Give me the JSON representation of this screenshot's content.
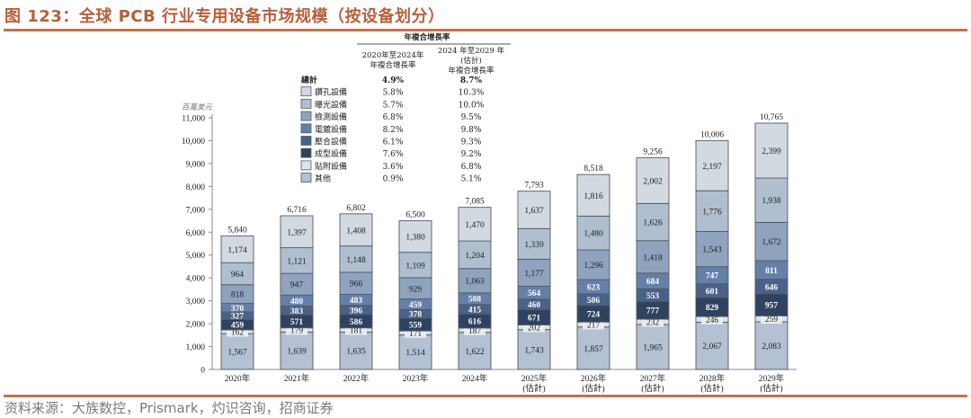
{
  "title": "图 123：全球 PCB 行业专用设备市场规模（按设备划分）",
  "source": "资料来源：大族数控，Prismark，灼识咨询，招商证券",
  "chart_data": {
    "type": "bar",
    "stacked": true,
    "title": "全球 PCB 行业专用设备市场规模（按设备划分）",
    "ylabel": "百萬美元",
    "xlabel": "",
    "ylim": [
      0,
      11000
    ],
    "yticks": [
      0,
      1000,
      2000,
      3000,
      4000,
      5000,
      6000,
      7000,
      8000,
      9000,
      10000,
      11000
    ],
    "ytick_labels": [
      "0",
      "1,000",
      "2,000",
      "3,000",
      "4,000",
      "5,000",
      "6,000",
      "7,000",
      "8,000",
      "9,000",
      "10,000",
      "11,000"
    ],
    "categories": [
      "2020年",
      "2021年",
      "2022年",
      "2023年",
      "2024年",
      "2025年",
      "2026年",
      "2027年",
      "2028年",
      "2029年"
    ],
    "category_sublabels": [
      "",
      "",
      "",
      "",
      "",
      "(估計)",
      "(估計)",
      "(估計)",
      "(估計)",
      "(估計)"
    ],
    "totals": [
      5840,
      6716,
      6802,
      6500,
      7085,
      7793,
      8518,
      9256,
      10006,
      10765
    ],
    "total_labels": [
      "5,840",
      "6,716",
      "6,802",
      "6,500",
      "7,085",
      "7,793",
      "8,518",
      "9,256",
      "10,006",
      "10,765"
    ],
    "series": [
      {
        "name": "其他",
        "color": "#b3c1d2",
        "text_color": "#222222",
        "values": [
          1567,
          1639,
          1635,
          1514,
          1622,
          1743,
          1857,
          1965,
          2067,
          2083
        ],
        "cagr_2020_2024": "0.9%",
        "cagr_2024_2029": "5.1%"
      },
      {
        "name": "貼附設備",
        "color": "#dde3ea",
        "text_color": "#222222",
        "values": [
          162,
          179,
          181,
          171,
          187,
          202,
          217,
          232,
          246,
          259
        ],
        "cagr_2020_2024": "3.6%",
        "cagr_2024_2029": "6.8%"
      },
      {
        "name": "成型設備",
        "color": "#2f4260",
        "text_color": "#ffffff",
        "values": [
          459,
          571,
          586,
          559,
          616,
          671,
          724,
          777,
          829,
          957
        ],
        "cagr_2020_2024": "7.6%",
        "cagr_2024_2029": "9.2%"
      },
      {
        "name": "壓合設備",
        "color": "#4a6289",
        "text_color": "#ffffff",
        "values": [
          327,
          383,
          396,
          378,
          415,
          460,
          506,
          553,
          601,
          646
        ],
        "cagr_2020_2024": "6.1%",
        "cagr_2024_2029": "9.3%"
      },
      {
        "name": "電鍍設備",
        "color": "#6580a8",
        "text_color": "#ffffff",
        "values": [
          370,
          480,
          483,
          459,
          508,
          564,
          623,
          684,
          747,
          811
        ],
        "cagr_2020_2024": "8.2%",
        "cagr_2024_2029": "9.8%"
      },
      {
        "name": "檢測設備",
        "color": "#8fa3bf",
        "text_color": "#222222",
        "values": [
          818,
          947,
          966,
          929,
          1063,
          1177,
          1296,
          1418,
          1543,
          1672
        ],
        "cagr_2020_2024": "6.8%",
        "cagr_2024_2029": "9.5%"
      },
      {
        "name": "曝光設備",
        "color": "#b0bfcf",
        "text_color": "#222222",
        "values": [
          964,
          1121,
          1148,
          1109,
          1204,
          1339,
          1480,
          1626,
          1776,
          1938
        ],
        "cagr_2020_2024": "5.7%",
        "cagr_2024_2029": "10.0%"
      },
      {
        "name": "鑽孔設備",
        "color": "#d2d9e1",
        "text_color": "#222222",
        "values": [
          1174,
          1397,
          1408,
          1380,
          1470,
          1637,
          1816,
          2002,
          2197,
          2399
        ],
        "cagr_2020_2024": "5.8%",
        "cagr_2024_2029": "10.3%"
      }
    ],
    "legend": {
      "placement": "top-center",
      "group_header": "年複合增長率",
      "col1_header": [
        "2020年至2024年",
        "年複合增長率"
      ],
      "col2_header": [
        "2024 年至2029 年",
        "(估計)",
        "年複合增長率"
      ],
      "total_row": {
        "label": "總計",
        "cagr_2020_2024": "4.9%",
        "cagr_2024_2029": "8.7%"
      },
      "order": [
        "鑽孔設備",
        "曝光設備",
        "檢測設備",
        "電鍍設備",
        "壓合設備",
        "成型設備",
        "貼附設備",
        "其他"
      ]
    }
  }
}
